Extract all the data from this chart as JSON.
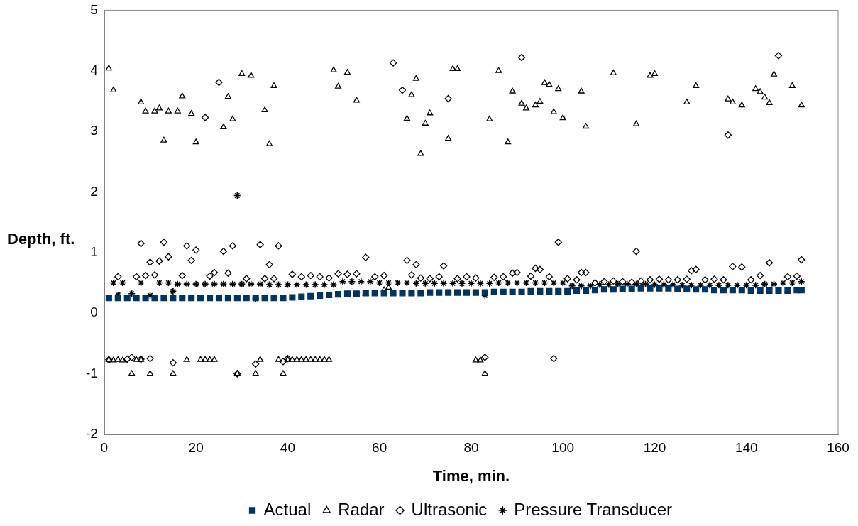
{
  "chart_data": {
    "type": "scatter",
    "xlabel": "Time, min.",
    "ylabel": "Depth, ft.",
    "xlim": [
      0,
      160
    ],
    "xticks": [
      0,
      20,
      40,
      60,
      80,
      100,
      120,
      140,
      160
    ],
    "ylim": [
      -2,
      5
    ],
    "yticks": [
      -2,
      -1,
      0,
      1,
      2,
      3,
      4,
      5
    ],
    "grid": false,
    "legend": "bottom",
    "series": [
      {
        "name": "Actual",
        "color": "#003366",
        "marker": "square",
        "x": [
          1,
          3,
          5,
          7,
          9,
          11,
          13,
          15,
          17,
          19,
          21,
          23,
          25,
          27,
          29,
          31,
          33,
          35,
          37,
          39,
          41,
          43,
          45,
          47,
          49,
          51,
          53,
          55,
          57,
          59,
          61,
          63,
          65,
          67,
          69,
          71,
          73,
          75,
          77,
          79,
          81,
          83,
          85,
          87,
          89,
          91,
          93,
          95,
          97,
          99,
          101,
          103,
          105,
          107,
          109,
          111,
          113,
          115,
          117,
          119,
          121,
          123,
          125,
          127,
          129,
          131,
          133,
          135,
          137,
          139,
          141,
          143,
          145,
          147,
          149,
          151,
          152
        ],
        "values": [
          0.25,
          0.25,
          0.25,
          0.25,
          0.25,
          0.25,
          0.25,
          0.25,
          0.25,
          0.25,
          0.25,
          0.25,
          0.25,
          0.25,
          0.25,
          0.25,
          0.25,
          0.25,
          0.25,
          0.25,
          0.26,
          0.27,
          0.28,
          0.29,
          0.3,
          0.31,
          0.32,
          0.32,
          0.33,
          0.33,
          0.33,
          0.33,
          0.33,
          0.33,
          0.33,
          0.34,
          0.34,
          0.34,
          0.34,
          0.34,
          0.34,
          0.34,
          0.35,
          0.35,
          0.35,
          0.35,
          0.36,
          0.36,
          0.36,
          0.36,
          0.36,
          0.37,
          0.37,
          0.38,
          0.39,
          0.39,
          0.4,
          0.4,
          0.41,
          0.41,
          0.41,
          0.41,
          0.4,
          0.4,
          0.39,
          0.39,
          0.38,
          0.38,
          0.38,
          0.38,
          0.37,
          0.37,
          0.37,
          0.37,
          0.37,
          0.38,
          0.38
        ]
      },
      {
        "name": "Radar",
        "color": "#000000",
        "marker": "triangle",
        "x": [
          1,
          2,
          8,
          9,
          11,
          12,
          13,
          14,
          16,
          17,
          19,
          20,
          26,
          27,
          28,
          30,
          32,
          35,
          36,
          37,
          50,
          51,
          53,
          55,
          66,
          67,
          68,
          69,
          70,
          71,
          75,
          76,
          77,
          84,
          86,
          88,
          89,
          91,
          92,
          94,
          95,
          96,
          97,
          98,
          99,
          100,
          104,
          105,
          111,
          116,
          119,
          120,
          127,
          129,
          136,
          137,
          139,
          142,
          143,
          144,
          145,
          146,
          150,
          152,
          1,
          2,
          3,
          4,
          6,
          7,
          8,
          10,
          15,
          18,
          21,
          22,
          23,
          24,
          29,
          33,
          34,
          38,
          39,
          40,
          41,
          42,
          43,
          44,
          45,
          46,
          47,
          48,
          49,
          81,
          82,
          83,
          57,
          61,
          62,
          149
        ],
        "values": [
          4.04,
          3.68,
          3.48,
          3.33,
          3.33,
          3.38,
          2.85,
          3.33,
          3.33,
          3.58,
          3.29,
          2.82,
          3.07,
          3.57,
          3.2,
          3.95,
          3.92,
          3.35,
          2.79,
          3.75,
          4.01,
          3.74,
          3.97,
          3.51,
          3.21,
          3.6,
          3.87,
          2.63,
          3.13,
          3.3,
          2.88,
          4.03,
          4.03,
          3.2,
          4.0,
          2.82,
          3.66,
          3.46,
          3.38,
          3.43,
          3.49,
          3.8,
          3.77,
          3.32,
          3.7,
          3.22,
          3.66,
          3.08,
          3.96,
          3.12,
          3.92,
          3.95,
          3.48,
          3.75,
          3.53,
          3.48,
          3.43,
          3.7,
          3.65,
          3.56,
          3.47,
          3.94,
          3.75,
          3.43,
          -0.77,
          -0.78,
          -0.77,
          -0.78,
          -1.0,
          -0.77,
          -0.77,
          -1.0,
          -1.0,
          -0.77,
          -0.77,
          -0.77,
          -0.77,
          -0.77,
          -1.0,
          -1.0,
          -0.77,
          -0.77,
          -1.0,
          -0.77,
          -0.77,
          -0.77,
          -0.77,
          -0.77,
          -0.77,
          -0.77,
          -0.77,
          -0.77,
          -0.77,
          -0.78,
          -0.78,
          -1.0,
          0.32,
          0.38,
          0.42,
          0.37
        ]
      },
      {
        "name": "Ultrasonic",
        "color": "#000000",
        "marker": "diamond",
        "x": [
          3,
          7,
          9,
          11,
          17,
          23,
          27,
          31,
          35,
          37,
          41,
          43,
          45,
          47,
          49,
          51,
          53,
          55,
          59,
          61,
          67,
          69,
          71,
          73,
          77,
          79,
          81,
          85,
          87,
          89,
          93,
          97,
          101,
          103,
          107,
          109,
          111,
          113,
          115,
          117,
          119,
          121,
          123,
          125,
          127,
          131,
          133,
          135,
          141,
          143,
          149,
          151,
          8,
          13,
          18,
          28,
          34,
          38,
          99,
          116,
          26,
          20,
          10,
          12,
          14,
          19,
          24,
          36,
          63,
          65,
          75,
          91,
          136,
          147,
          25,
          22,
          57,
          66,
          68,
          74,
          152,
          145,
          137,
          139,
          128,
          129,
          90,
          94,
          95,
          104,
          105,
          1,
          5,
          6,
          8,
          10,
          15,
          29,
          33,
          39,
          40,
          83,
          98
        ],
        "values": [
          0.6,
          0.6,
          0.62,
          0.63,
          0.62,
          0.61,
          0.66,
          0.57,
          0.57,
          0.57,
          0.64,
          0.6,
          0.62,
          0.6,
          0.58,
          0.65,
          0.64,
          0.65,
          0.6,
          0.62,
          0.63,
          0.58,
          0.57,
          0.6,
          0.57,
          0.6,
          0.58,
          0.59,
          0.6,
          0.66,
          0.61,
          0.6,
          0.57,
          0.55,
          0.5,
          0.52,
          0.53,
          0.52,
          0.51,
          0.53,
          0.55,
          0.56,
          0.55,
          0.55,
          0.56,
          0.55,
          0.56,
          0.55,
          0.55,
          0.62,
          0.6,
          0.61,
          1.15,
          1.17,
          1.11,
          1.11,
          1.13,
          1.11,
          1.17,
          1.02,
          1.02,
          1.04,
          0.84,
          0.86,
          0.93,
          0.87,
          0.67,
          0.8,
          4.13,
          3.68,
          3.54,
          4.22,
          2.94,
          4.25,
          3.81,
          3.23,
          0.92,
          0.87,
          0.8,
          0.78,
          0.88,
          0.83,
          0.77,
          0.76,
          0.7,
          0.72,
          0.67,
          0.74,
          0.72,
          0.67,
          0.67,
          -0.77,
          -0.76,
          -0.73,
          -0.76,
          -0.75,
          -0.82,
          -1.0,
          -0.84,
          -0.8,
          -0.75,
          -0.73,
          -0.75
        ]
      },
      {
        "name": "Pressure Transducer",
        "color": "#000000",
        "marker": "cross",
        "x": [
          2,
          4,
          6,
          8,
          10,
          12,
          14,
          16,
          18,
          20,
          22,
          24,
          26,
          28,
          30,
          32,
          34,
          36,
          38,
          40,
          42,
          44,
          46,
          48,
          50,
          52,
          54,
          56,
          58,
          60,
          62,
          64,
          66,
          68,
          70,
          72,
          74,
          76,
          78,
          80,
          82,
          84,
          86,
          88,
          90,
          92,
          94,
          96,
          98,
          100,
          102,
          104,
          106,
          108,
          110,
          112,
          114,
          116,
          118,
          120,
          122,
          124,
          126,
          128,
          130,
          132,
          134,
          136,
          138,
          140,
          142,
          144,
          146,
          148,
          150,
          152,
          3,
          15,
          29,
          33,
          83
        ],
        "values": [
          0.5,
          0.5,
          0.32,
          0.5,
          0.29,
          0.5,
          0.5,
          0.48,
          0.48,
          0.48,
          0.48,
          0.48,
          0.48,
          0.48,
          0.48,
          0.48,
          0.48,
          0.47,
          0.47,
          0.47,
          0.47,
          0.47,
          0.47,
          0.47,
          0.47,
          0.52,
          0.52,
          0.52,
          0.52,
          0.5,
          0.5,
          0.5,
          0.5,
          0.49,
          0.49,
          0.49,
          0.49,
          0.49,
          0.49,
          0.49,
          0.49,
          0.49,
          0.5,
          0.5,
          0.5,
          0.5,
          0.5,
          0.5,
          0.5,
          0.5,
          0.45,
          0.45,
          0.45,
          0.47,
          0.47,
          0.48,
          0.48,
          0.48,
          0.48,
          0.47,
          0.47,
          0.47,
          0.46,
          0.46,
          0.46,
          0.46,
          0.46,
          0.46,
          0.46,
          0.46,
          0.46,
          0.48,
          0.48,
          0.5,
          0.5,
          0.52,
          0.3,
          0.36,
          1.94,
          0.24,
          0.29
        ]
      }
    ]
  }
}
